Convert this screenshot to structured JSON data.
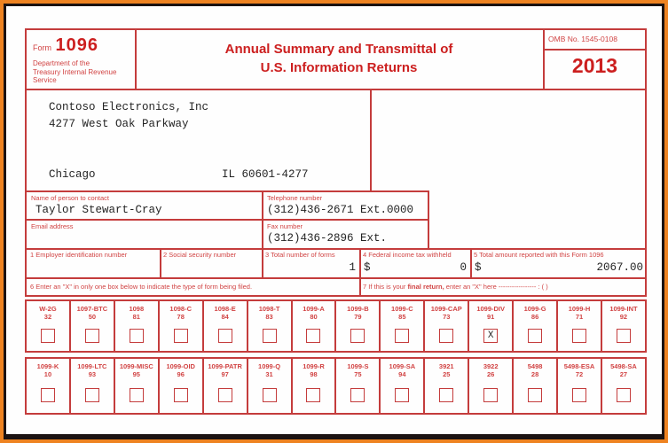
{
  "header": {
    "form_word": "Form",
    "form_number": "1096",
    "dept_line1": "Department of the",
    "dept_line2": "Treasury Internal Revenue",
    "dept_line3": "Service",
    "title_line1": "Annual Summary and Transmittal of",
    "title_line2": "U.S. Information Returns",
    "omb": "OMB No. 1545-0108",
    "year": "2013"
  },
  "filer": {
    "name": "Contoso Electronics, Inc",
    "street": "4277 West Oak Parkway",
    "city": "Chicago",
    "state_zip": "IL 60601-4277"
  },
  "contact": {
    "name_label": "Name of person to contact",
    "name_value": "Taylor Stewart-Cray",
    "phone_label": "Telephone number",
    "phone_value": "(312)436-2671 Ext.0000",
    "email_label": "Email address",
    "email_value": "",
    "fax_label": "Fax number",
    "fax_value": "(312)436-2896 Ext."
  },
  "boxes": {
    "box1_label": "1 Employer identification number",
    "box1_value": "",
    "box2_label": "2 Social security number",
    "box2_value": "",
    "box3_label": "3 Total number of forms",
    "box3_value": "1",
    "box4_label": "4 Federal income tax withheld",
    "box4_dollar": "$",
    "box4_value": "0",
    "box5_label": "5 Total amount reported with this Form 1096",
    "box5_dollar": "$",
    "box5_value": "2067.00",
    "box6_label": "6 Enter an \"X\" in only one box below to indicate the type of form being filed.",
    "box7_pre": "7 If this is your ",
    "box7_bold": "final return,",
    "box7_post": " enter an \"X\" here ----------------- : ( )"
  },
  "form_types": {
    "mark": "X",
    "row1": [
      {
        "name": "W-2G",
        "code": "32",
        "checked": false
      },
      {
        "name": "1097-BTC",
        "code": "50",
        "checked": false
      },
      {
        "name": "1098",
        "code": "81",
        "checked": false
      },
      {
        "name": "1098-C",
        "code": "78",
        "checked": false
      },
      {
        "name": "1098-E",
        "code": "84",
        "checked": false
      },
      {
        "name": "1098-T",
        "code": "83",
        "checked": false
      },
      {
        "name": "1099-A",
        "code": "80",
        "checked": false
      },
      {
        "name": "1099-B",
        "code": "79",
        "checked": false
      },
      {
        "name": "1099-C",
        "code": "85",
        "checked": false
      },
      {
        "name": "1099-CAP",
        "code": "73",
        "checked": false
      },
      {
        "name": "1099-DIV",
        "code": "91",
        "checked": true
      },
      {
        "name": "1099-G",
        "code": "86",
        "checked": false
      },
      {
        "name": "1099-H",
        "code": "71",
        "checked": false
      },
      {
        "name": "1099-INT",
        "code": "92",
        "checked": false
      }
    ],
    "row2": [
      {
        "name": "1099-K",
        "code": "10",
        "checked": false
      },
      {
        "name": "1099-LTC",
        "code": "93",
        "checked": false
      },
      {
        "name": "1099-MISC",
        "code": "95",
        "checked": false
      },
      {
        "name": "1099-OID",
        "code": "96",
        "checked": false
      },
      {
        "name": "1099-PATR",
        "code": "97",
        "checked": false
      },
      {
        "name": "1099-Q",
        "code": "31",
        "checked": false
      },
      {
        "name": "1099-R",
        "code": "98",
        "checked": false
      },
      {
        "name": "1099-S",
        "code": "75",
        "checked": false
      },
      {
        "name": "1099-SA",
        "code": "94",
        "checked": false
      },
      {
        "name": "3921",
        "code": "25",
        "checked": false
      },
      {
        "name": "3922",
        "code": "26",
        "checked": false
      },
      {
        "name": "5498",
        "code": "28",
        "checked": false
      },
      {
        "name": "5498-ESA",
        "code": "72",
        "checked": false
      },
      {
        "name": "5498-SA",
        "code": "27",
        "checked": false
      }
    ]
  },
  "colors": {
    "frame_orange": "#ee8321",
    "frame_black": "#1b1212",
    "form_red": "#c43c3c",
    "title_red": "#cc1f1f",
    "ink": "#242424"
  }
}
